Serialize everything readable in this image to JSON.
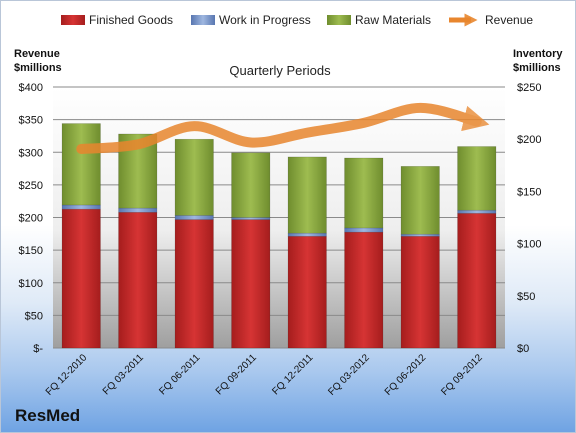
{
  "company": "ResMed",
  "chart_data": {
    "type": "bar",
    "stacked": true,
    "subtitle": "Quarterly Periods",
    "left_axis_label": [
      "Revenue",
      "$millions"
    ],
    "right_axis_label": [
      "Inventory",
      "$millions"
    ],
    "left_ticks": [
      "$-",
      "$50",
      "$100",
      "$150",
      "$200",
      "$250",
      "$300",
      "$350",
      "$400"
    ],
    "right_ticks": [
      "$0",
      "$50",
      "$100",
      "$150",
      "$200",
      "$250"
    ],
    "left_range": [
      0,
      400
    ],
    "right_range": [
      0,
      250
    ],
    "grid": true,
    "legend_position": "top",
    "categories": [
      "FQ 12-2010",
      "FQ 03-2011",
      "FQ 06-2011",
      "FQ 09-2011",
      "FQ 12-2011",
      "FQ 03-2012",
      "FQ 06-2012",
      "FQ 09-2012"
    ],
    "series": [
      {
        "name": "Finished Goods",
        "kind": "bar",
        "axis": "right",
        "color": "#c42a2a",
        "values": [
          133,
          130,
          123,
          123,
          107,
          111,
          107,
          129
        ]
      },
      {
        "name": "Work in Progress",
        "kind": "bar",
        "axis": "right",
        "color": "#6e8fc7",
        "values": [
          4,
          4,
          4,
          2,
          3,
          4,
          2,
          3
        ]
      },
      {
        "name": "Raw Materials",
        "kind": "bar",
        "axis": "right",
        "color": "#8aaa3e",
        "values": [
          78,
          71,
          73,
          62,
          73,
          67,
          65,
          61
        ]
      },
      {
        "name": "Revenue",
        "kind": "line",
        "axis": "left",
        "color": "#e8862e",
        "values": [
          305,
          312,
          340,
          315,
          330,
          345,
          368,
          347
        ]
      }
    ]
  }
}
